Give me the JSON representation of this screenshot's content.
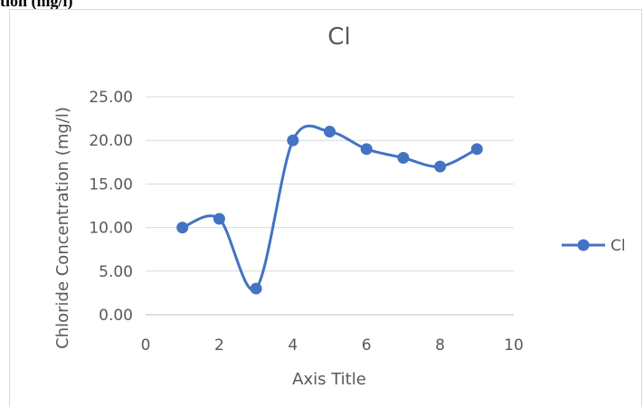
{
  "caption": "tion (mg/l)",
  "chart_data": {
    "type": "line",
    "title": "Cl",
    "xlabel": "Axis Title",
    "ylabel": "Chloride Concentration (mg/l)",
    "xlim": [
      0,
      10
    ],
    "ylim": [
      0,
      25
    ],
    "x_ticks": [
      "0",
      "2",
      "4",
      "6",
      "8",
      "10"
    ],
    "y_ticks": [
      "0.00",
      "5.00",
      "10.00",
      "15.00",
      "20.00",
      "25.00"
    ],
    "grid": "horizontal",
    "legend_position": "right",
    "series": [
      {
        "name": "Cl",
        "color": "#4472c4",
        "smooth": true,
        "marker": "circle",
        "x": [
          1,
          2,
          3,
          4,
          5,
          6,
          7,
          8,
          9
        ],
        "y": [
          10,
          11,
          3,
          20,
          21,
          19,
          18,
          17,
          19
        ]
      }
    ]
  }
}
